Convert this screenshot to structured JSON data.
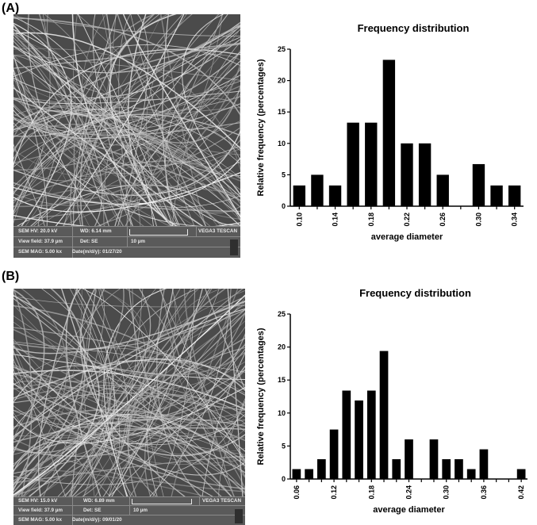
{
  "panels": [
    {
      "label": "(A)",
      "sem": {
        "hv": "SEM HV: 20.0 kV",
        "wd": "WD: 6.14 mm",
        "brand": "VEGA3 TESCAN",
        "view_field": "View field: 37.9 µm",
        "det": "Det: SE",
        "scale": "10 µm",
        "mag": "SEM MAG: 5.00 kx",
        "date": "Date(m/d/y): 01/27/20"
      },
      "chart_data": {
        "type": "bar",
        "title": "Frequency distribution",
        "xlabel": "average diameter",
        "ylabel": "Relative frequency (percentages)",
        "ylim": [
          0,
          25
        ],
        "yticks": [
          "0",
          "5",
          "10",
          "15",
          "20",
          "25"
        ],
        "xticks": [
          "0.10",
          "0.14",
          "0.18",
          "0.22",
          "0.26",
          "0.30",
          "0.34"
        ],
        "xlim": [
          0.09,
          0.35
        ],
        "bin_width": 0.02,
        "bins": [
          {
            "x": 0.1,
            "value": 3.3
          },
          {
            "x": 0.12,
            "value": 5.0
          },
          {
            "x": 0.14,
            "value": 3.3
          },
          {
            "x": 0.16,
            "value": 13.3
          },
          {
            "x": 0.18,
            "value": 13.3
          },
          {
            "x": 0.2,
            "value": 23.3
          },
          {
            "x": 0.22,
            "value": 10.0
          },
          {
            "x": 0.24,
            "value": 10.0
          },
          {
            "x": 0.26,
            "value": 5.0
          },
          {
            "x": 0.28,
            "value": 0
          },
          {
            "x": 0.3,
            "value": 6.7
          },
          {
            "x": 0.32,
            "value": 3.3
          },
          {
            "x": 0.34,
            "value": 3.3
          }
        ],
        "grid": false,
        "legend": "none",
        "bar_color": "#000000"
      }
    },
    {
      "label": "(B)",
      "sem": {
        "hv": "SEM HV: 15.0 kV",
        "wd": "WD: 6.89 mm",
        "brand": "VEGA3 TESCAN",
        "view_field": "View field: 37.9 µm",
        "det": "Det: SE",
        "scale": "10 µm",
        "mag": "SEM MAG: 5.00 kx",
        "date": "Date(m/d/y): 09/01/20"
      },
      "chart_data": {
        "type": "bar",
        "title": "Frequency distribution",
        "xlabel": "average diameter",
        "ylabel": "Relative frequency (percentages)",
        "ylim": [
          0,
          25
        ],
        "yticks": [
          "0",
          "5",
          "10",
          "15",
          "20",
          "25"
        ],
        "xticks": [
          "0.06",
          "0.12",
          "0.18",
          "0.24",
          "0.30",
          "0.36",
          "0.42"
        ],
        "xlim": [
          0.05,
          0.43
        ],
        "bin_width": 0.02,
        "bins": [
          {
            "x": 0.06,
            "value": 1.5
          },
          {
            "x": 0.08,
            "value": 1.5
          },
          {
            "x": 0.1,
            "value": 3.0
          },
          {
            "x": 0.12,
            "value": 7.5
          },
          {
            "x": 0.14,
            "value": 13.4
          },
          {
            "x": 0.16,
            "value": 11.9
          },
          {
            "x": 0.18,
            "value": 13.4
          },
          {
            "x": 0.2,
            "value": 19.4
          },
          {
            "x": 0.22,
            "value": 3.0
          },
          {
            "x": 0.24,
            "value": 6.0
          },
          {
            "x": 0.26,
            "value": 0
          },
          {
            "x": 0.28,
            "value": 6.0
          },
          {
            "x": 0.3,
            "value": 3.0
          },
          {
            "x": 0.32,
            "value": 3.0
          },
          {
            "x": 0.34,
            "value": 1.5
          },
          {
            "x": 0.36,
            "value": 4.5
          },
          {
            "x": 0.38,
            "value": 0
          },
          {
            "x": 0.4,
            "value": 0
          },
          {
            "x": 0.42,
            "value": 1.5
          }
        ],
        "grid": false,
        "legend": "none",
        "bar_color": "#000000"
      }
    }
  ]
}
